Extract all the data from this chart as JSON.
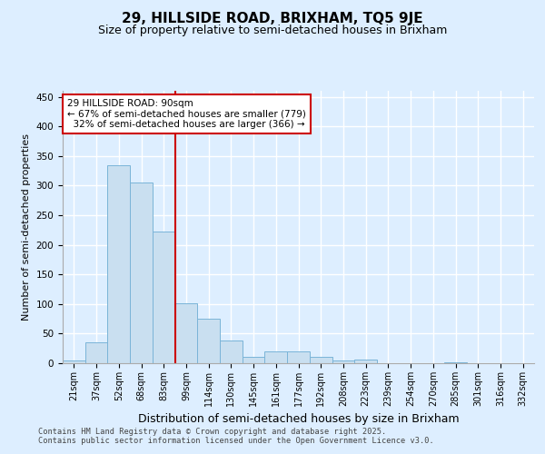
{
  "title": "29, HILLSIDE ROAD, BRIXHAM, TQ5 9JE",
  "subtitle": "Size of property relative to semi-detached houses in Brixham",
  "xlabel": "Distribution of semi-detached houses by size in Brixham",
  "ylabel": "Number of semi-detached properties",
  "categories": [
    "21sqm",
    "37sqm",
    "52sqm",
    "68sqm",
    "83sqm",
    "99sqm",
    "114sqm",
    "130sqm",
    "145sqm",
    "161sqm",
    "177sqm",
    "192sqm",
    "208sqm",
    "223sqm",
    "239sqm",
    "254sqm",
    "270sqm",
    "285sqm",
    "301sqm",
    "316sqm",
    "332sqm"
  ],
  "values": [
    4,
    35,
    335,
    305,
    223,
    101,
    75,
    38,
    10,
    20,
    20,
    10,
    5,
    6,
    0,
    0,
    0,
    1,
    0,
    0,
    0
  ],
  "bar_color": "#c9dff0",
  "bar_edgecolor": "#7ab4d8",
  "marker_line_color": "#cc0000",
  "annotation_box_color": "#ffffff",
  "annotation_box_edgecolor": "#cc0000",
  "marker_label": "29 HILLSIDE ROAD: 90sqm",
  "smaller_pct": "67%",
  "smaller_count": 779,
  "larger_pct": "32%",
  "larger_count": 366,
  "bg_color": "#ddeeff",
  "grid_color": "#ffffff",
  "footer": "Contains HM Land Registry data © Crown copyright and database right 2025.\nContains public sector information licensed under the Open Government Licence v3.0.",
  "ylim": [
    0,
    460
  ],
  "marker_bin_index": 4,
  "title_fontsize": 11,
  "subtitle_fontsize": 9,
  "tick_fontsize": 7,
  "ylabel_fontsize": 8,
  "xlabel_fontsize": 9
}
